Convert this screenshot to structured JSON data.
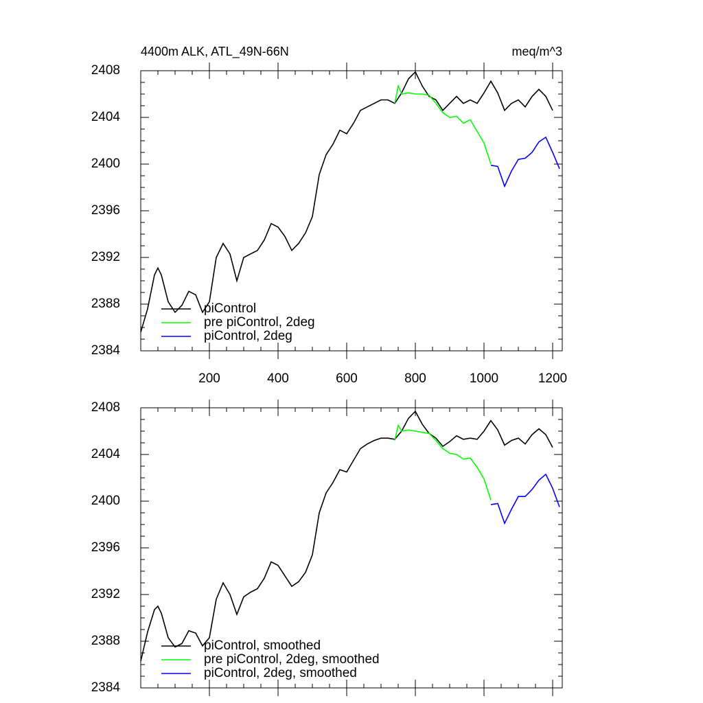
{
  "chart_data": [
    {
      "type": "line",
      "title": "4400m ALK, ATL_49N-66N",
      "units": "meq/m^3",
      "xlim": [
        0,
        1228
      ],
      "xticks": [
        200,
        400,
        600,
        800,
        1000,
        1200
      ],
      "show_xtick_labels": true,
      "ylim": [
        2384,
        2408
      ],
      "yticks": [
        2384,
        2388,
        2392,
        2396,
        2400,
        2404,
        2408
      ],
      "legend": "lower left",
      "series": [
        {
          "name": "piControl",
          "color": "#000000",
          "x": [
            0,
            20,
            40,
            50,
            60,
            80,
            100,
            120,
            140,
            160,
            180,
            200,
            220,
            240,
            260,
            280,
            300,
            320,
            340,
            360,
            380,
            400,
            420,
            440,
            460,
            480,
            500,
            520,
            540,
            560,
            580,
            600,
            620,
            640,
            660,
            680,
            700,
            720,
            740,
            760,
            780,
            800,
            820,
            840,
            860,
            880,
            900,
            920,
            940,
            960,
            980,
            1000,
            1020,
            1040,
            1060,
            1080,
            1100,
            1120,
            1140,
            1160,
            1180,
            1200
          ],
          "values": [
            2385.6,
            2387.6,
            2390.5,
            2391.1,
            2390.5,
            2388.2,
            2387.3,
            2387.9,
            2389.1,
            2388.8,
            2387.3,
            2388.2,
            2392.0,
            2393.2,
            2392.3,
            2390.0,
            2392.0,
            2392.3,
            2392.6,
            2393.5,
            2394.9,
            2394.6,
            2393.8,
            2392.6,
            2393.2,
            2394.1,
            2395.5,
            2399.1,
            2400.8,
            2401.7,
            2402.9,
            2402.6,
            2403.5,
            2404.6,
            2404.9,
            2405.2,
            2405.5,
            2405.5,
            2405.2,
            2406.1,
            2407.3,
            2407.9,
            2406.7,
            2405.8,
            2405.5,
            2404.6,
            2405.2,
            2405.8,
            2405.2,
            2405.5,
            2405.2,
            2406.1,
            2407.1,
            2406.1,
            2404.6,
            2405.2,
            2405.5,
            2404.9,
            2405.8,
            2406.4,
            2405.8,
            2404.6
          ]
        },
        {
          "name": "pre piControl, 2deg",
          "color": "#00ff00",
          "x": [
            740,
            750,
            760,
            780,
            800,
            820,
            840,
            860,
            880,
            900,
            920,
            940,
            960,
            980,
            1000,
            1020
          ],
          "values": [
            2405.2,
            2406.7,
            2406.0,
            2406.1,
            2406.0,
            2406.0,
            2405.9,
            2405.2,
            2404.4,
            2404.0,
            2404.1,
            2403.5,
            2403.8,
            2402.8,
            2401.8,
            2400.0
          ]
        },
        {
          "name": "piControl, 2deg",
          "color": "#0000ff",
          "x": [
            1020,
            1040,
            1060,
            1080,
            1100,
            1120,
            1140,
            1160,
            1180,
            1200,
            1220
          ],
          "values": [
            2399.9,
            2399.8,
            2398.1,
            2399.4,
            2400.4,
            2400.5,
            2401.0,
            2401.9,
            2402.3,
            2401.0,
            2399.6
          ]
        }
      ]
    },
    {
      "type": "line",
      "xlim": [
        0,
        1228
      ],
      "xticks": [
        200,
        400,
        600,
        800,
        1000,
        1200
      ],
      "show_xtick_labels": false,
      "ylim": [
        2384,
        2408
      ],
      "yticks": [
        2384,
        2388,
        2392,
        2396,
        2400,
        2404,
        2408
      ],
      "legend": "lower left",
      "series": [
        {
          "name": "piControl, smoothed",
          "color": "#000000",
          "x": [
            0,
            20,
            40,
            50,
            60,
            80,
            100,
            120,
            140,
            160,
            180,
            200,
            220,
            240,
            260,
            280,
            300,
            320,
            340,
            360,
            380,
            400,
            420,
            440,
            460,
            480,
            500,
            520,
            540,
            560,
            580,
            600,
            620,
            640,
            660,
            680,
            700,
            720,
            740,
            760,
            780,
            800,
            820,
            840,
            860,
            880,
            900,
            920,
            940,
            960,
            980,
            1000,
            1020,
            1040,
            1060,
            1080,
            1100,
            1120,
            1140,
            1160,
            1180,
            1200
          ],
          "values": [
            2386.3,
            2388.8,
            2390.7,
            2391.0,
            2390.4,
            2388.3,
            2387.5,
            2387.8,
            2388.9,
            2388.7,
            2387.6,
            2388.3,
            2391.6,
            2393.0,
            2392.0,
            2390.3,
            2391.8,
            2392.2,
            2392.5,
            2393.4,
            2394.8,
            2394.5,
            2393.6,
            2392.7,
            2393.1,
            2393.9,
            2395.4,
            2399.0,
            2400.7,
            2401.6,
            2402.7,
            2402.5,
            2403.5,
            2404.5,
            2404.9,
            2405.2,
            2405.4,
            2405.4,
            2405.3,
            2406.0,
            2407.1,
            2407.7,
            2406.6,
            2405.8,
            2405.4,
            2404.7,
            2405.1,
            2405.6,
            2405.3,
            2405.4,
            2405.3,
            2406.0,
            2406.9,
            2406.1,
            2404.8,
            2405.2,
            2405.4,
            2404.9,
            2405.7,
            2406.2,
            2405.7,
            2404.6
          ]
        },
        {
          "name": "pre piControl, 2deg, smoothed",
          "color": "#00ff00",
          "x": [
            740,
            750,
            760,
            780,
            800,
            820,
            840,
            860,
            880,
            900,
            920,
            940,
            960,
            980,
            1000,
            1020
          ],
          "values": [
            2405.2,
            2406.5,
            2406.0,
            2406.1,
            2406.0,
            2405.9,
            2405.8,
            2405.2,
            2404.5,
            2404.1,
            2404.0,
            2403.6,
            2403.7,
            2402.9,
            2401.9,
            2400.1
          ]
        },
        {
          "name": "piControl, 2deg, smoothed",
          "color": "#0000ff",
          "x": [
            1020,
            1040,
            1060,
            1080,
            1100,
            1120,
            1140,
            1160,
            1180,
            1200,
            1220
          ],
          "values": [
            2399.7,
            2399.8,
            2398.1,
            2399.3,
            2400.4,
            2400.4,
            2401.0,
            2401.8,
            2402.3,
            2401.1,
            2399.5
          ]
        }
      ]
    }
  ]
}
